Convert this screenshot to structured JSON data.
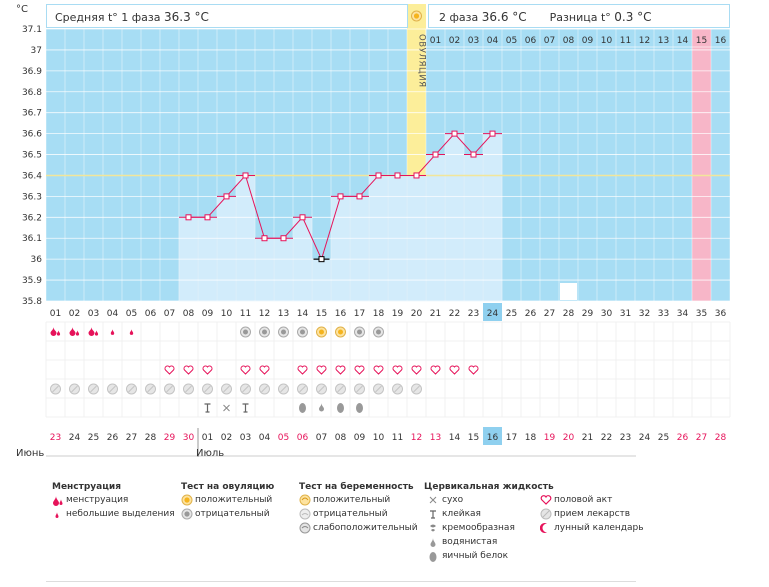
{
  "header": {
    "phase1_label": "Средняя t° 1 фаза",
    "phase1_value": "36.3 °C",
    "phase2_label": "2 фаза",
    "phase2_value": "36.6 °C",
    "diff_label": "Разница t°",
    "diff_value": "0.3 °C",
    "sun_icon": "sun-icon"
  },
  "chart_data": {
    "type": "line",
    "ylabel": "°C",
    "ylim": [
      35.8,
      37.1
    ],
    "y_ticks": [
      "37.1",
      "37",
      "36.9",
      "36.8",
      "36.7",
      "36.6",
      "36.5",
      "36.4",
      "36.3",
      "36.2",
      "36.1",
      "36",
      "35.9",
      "35.8"
    ],
    "cycle_days": [
      "01",
      "02",
      "03",
      "04",
      "05",
      "06",
      "07",
      "08",
      "09",
      "10",
      "11",
      "12",
      "13",
      "14",
      "15",
      "16",
      "17",
      "18",
      "19",
      "20",
      "21",
      "22",
      "23",
      "24",
      "25",
      "26",
      "27",
      "28",
      "29",
      "30",
      "31",
      "32",
      "33",
      "34",
      "35",
      "36"
    ],
    "top_days": [
      "01",
      "02",
      "03",
      "04",
      "05",
      "06",
      "07",
      "08",
      "09",
      "10",
      "11",
      "12",
      "13",
      "14",
      "15",
      "16"
    ],
    "ovulation_label": "ОВУЛЯЦИЯ",
    "ovulation_day": 20,
    "coverline": 36.4,
    "highlight_day": "24",
    "highlight_pink_day": 35,
    "moon_day": 28,
    "selected_point_day": 15,
    "series": [
      {
        "x": [
          8,
          9,
          10,
          11,
          12,
          13,
          14,
          15,
          16,
          17,
          18,
          19,
          20,
          21,
          22,
          23,
          24
        ],
        "values": [
          36.2,
          36.2,
          36.3,
          36.4,
          36.1,
          36.1,
          36.2,
          36.0,
          36.3,
          36.3,
          36.4,
          36.4,
          36.4,
          36.5,
          36.6,
          36.5,
          36.6
        ]
      }
    ],
    "rows": {
      "menstruation": {
        "1": "heavy",
        "2": "heavy",
        "3": "heavy",
        "4": "light",
        "5": "light"
      },
      "ovulation_test": {
        "11": "negative",
        "12": "negative",
        "13": "negative",
        "14": "negative",
        "15": "positive",
        "16": "positive",
        "17": "negative",
        "18": "negative"
      },
      "sex": [
        7,
        8,
        9,
        11,
        12,
        14,
        15,
        16,
        17,
        18,
        19,
        20,
        21,
        22,
        23
      ],
      "pills_from": 1,
      "pills_to": 20,
      "fluid": {
        "9": "sticky",
        "10": "dry",
        "11": "sticky",
        "14": "eggwhite",
        "15": "watery",
        "16": "eggwhite",
        "17": "eggwhite"
      }
    },
    "calendar_days": [
      "23",
      "24",
      "25",
      "26",
      "27",
      "28",
      "29",
      "30",
      "01",
      "02",
      "03",
      "04",
      "05",
      "06",
      "07",
      "08",
      "09",
      "10",
      "11",
      "12",
      "13",
      "14",
      "15",
      "16",
      "17",
      "18",
      "19",
      "20",
      "21",
      "22",
      "23",
      "24",
      "25",
      "26",
      "27",
      "28"
    ],
    "calendar_red": [
      1,
      7,
      8,
      13,
      14,
      20,
      21,
      27,
      28,
      34,
      35,
      36
    ],
    "calendar_highlight": 24,
    "month_labels": [
      {
        "day": 1,
        "text": "Июнь"
      },
      {
        "day": 9,
        "text": "Июль"
      }
    ],
    "month_separator_day": 9
  },
  "legend": {
    "menstruation": {
      "title": "Менструация",
      "items": [
        {
          "icon": "heavy-drops-icon",
          "label": "менструация"
        },
        {
          "icon": "light-drop-icon",
          "label": "небольшие выделения"
        }
      ]
    },
    "ovulation_test": {
      "title": "Тест на овуляцию",
      "items": [
        {
          "icon": "positive-test-icon",
          "label": "положительный"
        },
        {
          "icon": "negative-test-icon",
          "label": "отрицательный"
        }
      ]
    },
    "pregnancy_test": {
      "title": "Тест на беременность",
      "items": [
        {
          "icon": "pregnancy-positive-icon",
          "label": "положительный"
        },
        {
          "icon": "pregnancy-negative-icon",
          "label": "отрицательный"
        },
        {
          "icon": "pregnancy-weak-icon",
          "label": "слабоположительный"
        }
      ]
    },
    "cervical_fluid": {
      "title": "Цервикальная жидкость",
      "items": [
        {
          "icon": "dry-icon",
          "label": "сухо"
        },
        {
          "icon": "sticky-icon",
          "label": "клейкая"
        },
        {
          "icon": "creamy-icon",
          "label": "кремообразная"
        },
        {
          "icon": "watery-icon",
          "label": "водянистая"
        },
        {
          "icon": "eggwhite-icon",
          "label": "яичный белок"
        }
      ]
    },
    "other": {
      "items": [
        {
          "icon": "heart-icon",
          "label": "половой акт"
        },
        {
          "icon": "pill-icon",
          "label": "прием лекарств"
        },
        {
          "icon": "moon-icon",
          "label": "лунный календарь"
        }
      ]
    },
    "colors": {
      "pink": "#e6135a",
      "blue_bg": "#a7ddf4",
      "bar": "#d2ecfb",
      "ovulation": "#fcee9a",
      "highlight": "#8fd0ef",
      "pink_col": "#f7b6c8"
    }
  }
}
